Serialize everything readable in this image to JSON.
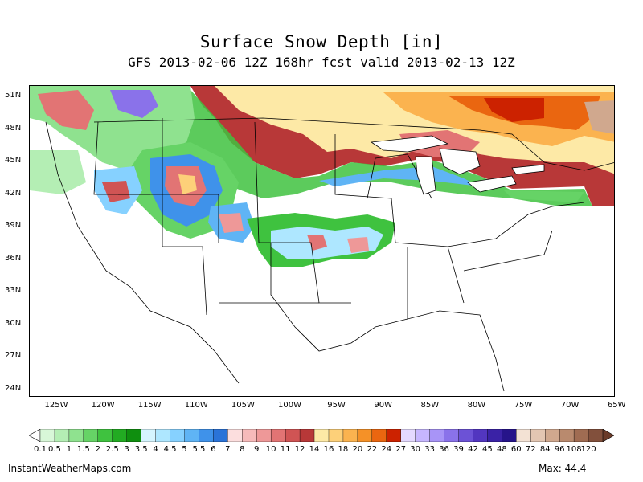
{
  "title": "Surface Snow Depth [in]",
  "subtitle": "GFS 2013-02-06 12Z 168hr fcst valid 2013-02-13 12Z",
  "lat_labels": [
    "51N",
    "48N",
    "45N",
    "42N",
    "39N",
    "36N",
    "33N",
    "30N",
    "27N",
    "24N"
  ],
  "lon_labels": [
    "125W",
    "120W",
    "115W",
    "110W",
    "105W",
    "100W",
    "95W",
    "90W",
    "85W",
    "80W",
    "75W",
    "70W",
    "65W"
  ],
  "legend": {
    "labels": [
      "0.1",
      "0.5",
      "1",
      "1.5",
      "2",
      "2.5",
      "3",
      "3.5",
      "4",
      "4.5",
      "5",
      "5.5",
      "6",
      "7",
      "8",
      "9",
      "10",
      "11",
      "12",
      "14",
      "16",
      "18",
      "20",
      "22",
      "24",
      "27",
      "30",
      "33",
      "36",
      "39",
      "42",
      "45",
      "48",
      "60",
      "72",
      "84",
      "96",
      "108",
      "120"
    ],
    "colors": [
      "#d8f7d8",
      "#b4eeb4",
      "#8fe28f",
      "#66d366",
      "#3fc23f",
      "#22ab22",
      "#0f8f0f",
      "#d5f5ff",
      "#aee7ff",
      "#86d1ff",
      "#5fb4f5",
      "#3f92ea",
      "#2a73d8",
      "#fcdede",
      "#f6baba",
      "#ee9898",
      "#e27474",
      "#d05454",
      "#b83838",
      "#fde9a6",
      "#fdd079",
      "#fbb34f",
      "#f59127",
      "#ea6610",
      "#cc2200",
      "#e4d9ff",
      "#c6b6ff",
      "#a894f7",
      "#8a72ea",
      "#6c52d6",
      "#5236c0",
      "#3a22a6",
      "#26148a",
      "#f3e2d4",
      "#e3c6b2",
      "#d0a88e",
      "#b98a6e",
      "#a06c52",
      "#82503c"
    ],
    "under_color": "#ffffff",
    "over_color": "#6a3a28"
  },
  "credit": "InstantWeatherMaps.com",
  "max_label": "Max:  44.4"
}
